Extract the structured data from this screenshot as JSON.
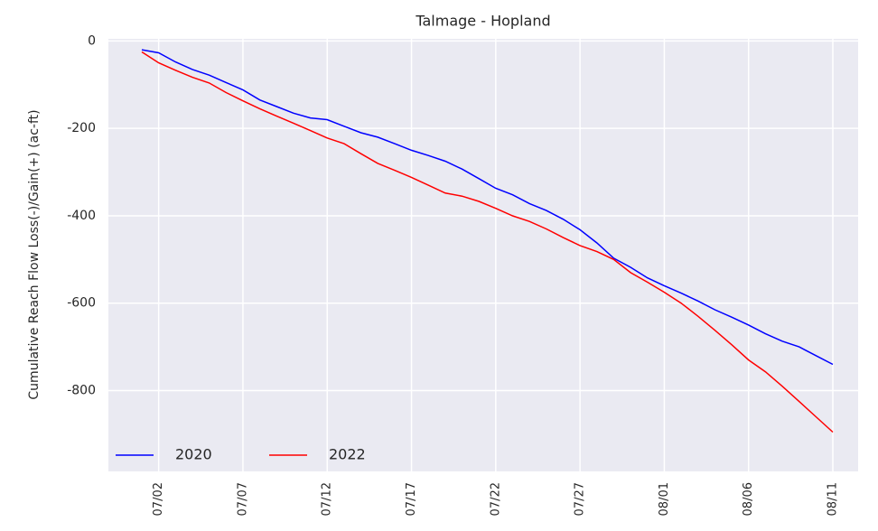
{
  "chart_data": {
    "type": "line",
    "title": "Talmage - Hopland",
    "y_label": "Cumulative Reach Flow Loss(-)/Gain(+) (ac-ft)",
    "categories": [
      null,
      "07/02",
      null,
      null,
      null,
      null,
      "07/07",
      null,
      null,
      null,
      null,
      "07/12",
      null,
      null,
      null,
      null,
      "07/17",
      null,
      null,
      null,
      null,
      "07/22",
      null,
      null,
      null,
      null,
      "07/27",
      null,
      null,
      null,
      null,
      "08/01",
      null,
      null,
      null,
      null,
      "08/06",
      null,
      null,
      null,
      null,
      "08/11"
    ],
    "series": [
      {
        "name": "2020",
        "color": "#0000ff",
        "values": [
          -20,
          -27,
          -48,
          -65,
          -78,
          -95,
          -112,
          -135,
          -150,
          -165,
          -176,
          -180,
          -195,
          -210,
          -220,
          -235,
          -250,
          -262,
          -275,
          -293,
          -315,
          -337,
          -352,
          -372,
          -388,
          -408,
          -432,
          -462,
          -497,
          -518,
          -542,
          -560,
          -577,
          -595,
          -615,
          -632,
          -650,
          -670,
          -687,
          -700,
          -720,
          -740
        ]
      },
      {
        "name": "2022",
        "color": "#ff0000",
        "values": [
          -25,
          -50,
          -67,
          -83,
          -96,
          -118,
          -137,
          -155,
          -172,
          -188,
          -205,
          -222,
          -235,
          -258,
          -280,
          -296,
          -312,
          -330,
          -348,
          -355,
          -367,
          -383,
          -400,
          -413,
          -430,
          -450,
          -468,
          -482,
          -500,
          -530,
          -552,
          -575,
          -600,
          -630,
          -662,
          -695,
          -730,
          -757,
          -790,
          -825,
          -860,
          -895
        ]
      }
    ],
    "ylim": [
      -985,
      5
    ],
    "yticks": [
      0,
      -200,
      -400,
      -600,
      -800
    ],
    "grid": true,
    "legend": "lower left"
  }
}
